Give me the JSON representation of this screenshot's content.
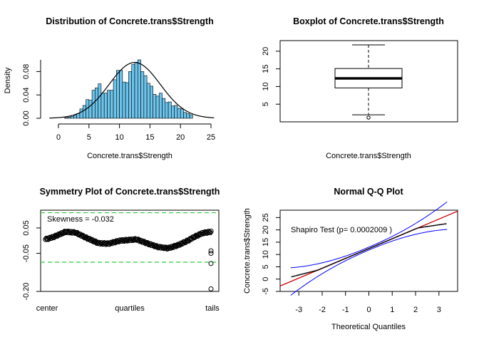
{
  "chart_data": [
    {
      "type": "bar",
      "title": "Distribution of Concrete.trans$Strength",
      "xlabel": "Concrete.trans$Strength",
      "ylabel": "Density",
      "xlim": [
        -2,
        25
      ],
      "ylim": [
        0,
        0.1
      ],
      "x_ticks": [
        "0",
        "5",
        "10",
        "15",
        "20",
        "25"
      ],
      "y_ticks": [
        "0.00",
        "0.04",
        "0.08"
      ],
      "bar_color": "#6cc3eb",
      "bins": [
        {
          "x0": 1.0,
          "x1": 1.5,
          "density": 0.001
        },
        {
          "x0": 1.5,
          "x1": 2.0,
          "density": 0.002
        },
        {
          "x0": 2.0,
          "x1": 2.5,
          "density": 0.003
        },
        {
          "x0": 2.5,
          "x1": 3.0,
          "density": 0.005
        },
        {
          "x0": 3.0,
          "x1": 3.5,
          "density": 0.008
        },
        {
          "x0": 3.5,
          "x1": 4.0,
          "density": 0.016
        },
        {
          "x0": 4.0,
          "x1": 4.5,
          "density": 0.022
        },
        {
          "x0": 4.5,
          "x1": 5.0,
          "density": 0.032
        },
        {
          "x0": 5.0,
          "x1": 5.5,
          "density": 0.031
        },
        {
          "x0": 5.5,
          "x1": 6.0,
          "density": 0.048
        },
        {
          "x0": 6.0,
          "x1": 6.5,
          "density": 0.052
        },
        {
          "x0": 6.5,
          "x1": 7.0,
          "density": 0.059
        },
        {
          "x0": 7.0,
          "x1": 7.5,
          "density": 0.043
        },
        {
          "x0": 7.5,
          "x1": 8.0,
          "density": 0.043
        },
        {
          "x0": 8.0,
          "x1": 8.5,
          "density": 0.048
        },
        {
          "x0": 8.5,
          "x1": 9.0,
          "density": 0.048
        },
        {
          "x0": 9.0,
          "x1": 9.5,
          "density": 0.066
        },
        {
          "x0": 9.5,
          "x1": 10.0,
          "density": 0.082
        },
        {
          "x0": 10.0,
          "x1": 10.5,
          "density": 0.082
        },
        {
          "x0": 10.5,
          "x1": 11.0,
          "density": 0.062
        },
        {
          "x0": 11.0,
          "x1": 11.5,
          "density": 0.061
        },
        {
          "x0": 11.5,
          "x1": 12.0,
          "density": 0.08
        },
        {
          "x0": 12.0,
          "x1": 12.5,
          "density": 0.092
        },
        {
          "x0": 12.5,
          "x1": 13.0,
          "density": 0.096
        },
        {
          "x0": 13.0,
          "x1": 13.5,
          "density": 0.1
        },
        {
          "x0": 13.5,
          "x1": 14.0,
          "density": 0.08
        },
        {
          "x0": 14.0,
          "x1": 14.5,
          "density": 0.073
        },
        {
          "x0": 14.5,
          "x1": 15.0,
          "density": 0.06
        },
        {
          "x0": 15.0,
          "x1": 15.5,
          "density": 0.055
        },
        {
          "x0": 15.5,
          "x1": 16.0,
          "density": 0.041
        },
        {
          "x0": 16.0,
          "x1": 16.5,
          "density": 0.038
        },
        {
          "x0": 16.5,
          "x1": 17.0,
          "density": 0.043
        },
        {
          "x0": 17.0,
          "x1": 17.5,
          "density": 0.034
        },
        {
          "x0": 17.5,
          "x1": 18.0,
          "density": 0.027
        },
        {
          "x0": 18.0,
          "x1": 18.5,
          "density": 0.028
        },
        {
          "x0": 18.5,
          "x1": 19.0,
          "density": 0.021
        },
        {
          "x0": 19.0,
          "x1": 19.5,
          "density": 0.022
        },
        {
          "x0": 19.5,
          "x1": 20.0,
          "density": 0.017
        },
        {
          "x0": 20.0,
          "x1": 20.5,
          "density": 0.016
        },
        {
          "x0": 20.5,
          "x1": 21.0,
          "density": 0.01
        },
        {
          "x0": 21.0,
          "x1": 21.5,
          "density": 0.008
        },
        {
          "x0": 21.5,
          "x1": 22.0,
          "density": 0.006
        }
      ],
      "density_curve": {
        "type": "line",
        "color": "#000000",
        "mean": 12.5,
        "sd": 4.2,
        "peak": 0.0955,
        "x_range": [
          -1.5,
          25.5
        ]
      }
    },
    {
      "type": "boxplot",
      "title": "Boxplot of Concrete.trans$Strength",
      "xlabel": "Concrete.trans$Strength",
      "ylim": [
        0,
        23
      ],
      "y_ticks": [
        "5",
        "10",
        "15",
        "20"
      ],
      "stats": {
        "min": 2.0,
        "q1": 9.6,
        "median": 12.3,
        "q3": 15.1,
        "max": 21.8
      },
      "outliers": [
        1.2
      ]
    },
    {
      "type": "scatter",
      "title": "Symmetry Plot of Concrete.trans$Strength",
      "annotation": "Skewness = -0.032",
      "x_ticks": [
        "center",
        "quartiles",
        "tails"
      ],
      "ylim": [
        -0.2,
        0.12
      ],
      "y_ticks": [
        "-0.20",
        "-0.05",
        "0.05"
      ],
      "reference_lines": [
        0.11,
        -0.085
      ],
      "reference_color": "#2ecc40",
      "curve_knots": [
        [
          0.0,
          0.005
        ],
        [
          0.05,
          0.015
        ],
        [
          0.12,
          0.035
        ],
        [
          0.18,
          0.032
        ],
        [
          0.25,
          0.01
        ],
        [
          0.32,
          -0.01
        ],
        [
          0.38,
          -0.012
        ],
        [
          0.45,
          0.0
        ],
        [
          0.55,
          0.005
        ],
        [
          0.62,
          -0.012
        ],
        [
          0.68,
          -0.025
        ],
        [
          0.74,
          -0.03
        ],
        [
          0.8,
          -0.018
        ],
        [
          0.86,
          0.0
        ],
        [
          0.9,
          0.015
        ],
        [
          0.95,
          0.03
        ],
        [
          1.0,
          0.035
        ]
      ],
      "tail_points": [
        [
          1.0,
          -0.04
        ],
        [
          1.0,
          -0.05
        ],
        [
          1.0,
          -0.09
        ],
        [
          1.0,
          -0.19
        ]
      ]
    },
    {
      "type": "scatter",
      "title": "Normal Q-Q Plot",
      "xlabel": "Theoretical Quantiles",
      "ylabel": "Concrete.trans$Strength",
      "annotation": "Shapiro Test (p= 0.0002009 )",
      "xlim": [
        -3.8,
        3.8
      ],
      "ylim": [
        -5,
        28
      ],
      "x_ticks": [
        "-3",
        "-2",
        "-1",
        "0",
        "1",
        "2",
        "3"
      ],
      "y_ticks": [
        "-5",
        "0",
        "5",
        "10",
        "15",
        "20",
        "25"
      ],
      "qq_line": {
        "color": "#cc0000",
        "intercept": 12.4,
        "slope": 4.0
      },
      "band_color": "#0000ff",
      "point_color": "#000000"
    }
  ]
}
